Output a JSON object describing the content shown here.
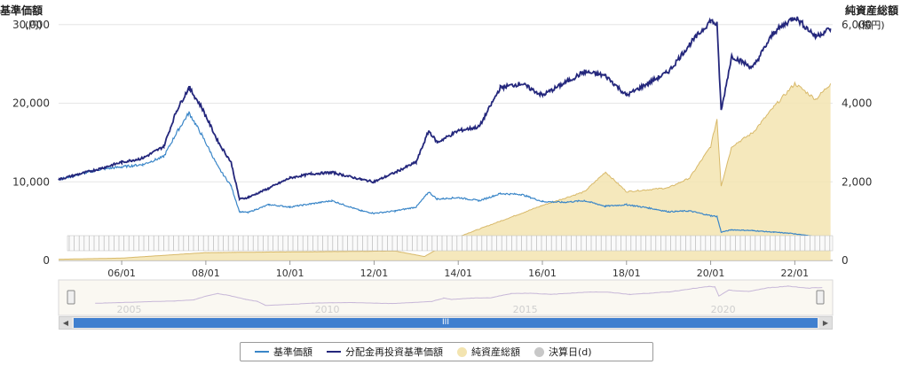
{
  "axes": {
    "left_title": "基準価額",
    "left_unit": "(円)",
    "right_title": "純資産総額",
    "right_unit": "(億円)"
  },
  "legend": {
    "items": [
      {
        "label": "基準価額",
        "color": "#3a86c8",
        "kind": "line"
      },
      {
        "label": "分配金再投資基準価額",
        "color": "#24277c",
        "kind": "line"
      },
      {
        "label": "純資産総額",
        "color": "#f3e4b0",
        "kind": "dot"
      },
      {
        "label": "決算日(d)",
        "color": "#c8c8c8",
        "kind": "dot"
      }
    ]
  },
  "navigator": {
    "years": [
      "2005",
      "2010",
      "2015",
      "2020"
    ],
    "scroll_label": "III"
  },
  "chart_data": {
    "type": "line",
    "x_axis": {
      "label": "",
      "ticks": [
        "06/01",
        "08/01",
        "10/01",
        "12/01",
        "14/01",
        "16/01",
        "18/01",
        "20/01",
        "22/01"
      ],
      "range": [
        "2004/06",
        "2022/12"
      ]
    },
    "y_axis_left": {
      "ticks": [
        "0",
        "10,000",
        "20,000",
        "30,000"
      ],
      "ylim": [
        0,
        32000
      ]
    },
    "y_axis_right": {
      "ticks": [
        "0",
        "2,000",
        "4,000",
        "6,000"
      ],
      "ylim": [
        0,
        6400
      ]
    },
    "grid": true,
    "series": [
      {
        "name": "基準価額",
        "axis": "left",
        "color": "#3a86c8",
        "x": [
          2004.5,
          2005.5,
          2006.0,
          2006.5,
          2007.0,
          2007.3,
          2007.6,
          2007.9,
          2008.3,
          2008.6,
          2008.8,
          2009.0,
          2009.5,
          2010.0,
          2010.5,
          2011.0,
          2011.7,
          2012.0,
          2012.5,
          2013.0,
          2013.3,
          2013.5,
          2014.0,
          2014.5,
          2015.0,
          2015.5,
          2016.0,
          2016.5,
          2017.0,
          2017.5,
          2018.0,
          2018.5,
          2019.0,
          2019.5,
          2020.0,
          2020.15,
          2020.25,
          2020.5,
          2021.0,
          2021.5,
          2022.0,
          2022.5,
          2022.85
        ],
        "values": [
          10300,
          11600,
          11900,
          12200,
          13200,
          16200,
          18800,
          16000,
          11800,
          9500,
          6200,
          6100,
          7100,
          6800,
          7200,
          7600,
          6300,
          6000,
          6300,
          6800,
          8700,
          7800,
          8000,
          7600,
          8500,
          8400,
          7500,
          7400,
          7600,
          6900,
          7100,
          6700,
          6200,
          6300,
          5700,
          5600,
          3600,
          3900,
          3800,
          3600,
          3400,
          3000,
          2800
        ]
      },
      {
        "name": "分配金再投資基準価額",
        "axis": "left",
        "color": "#24277c",
        "x": [
          2004.5,
          2005.5,
          2006.0,
          2006.5,
          2007.0,
          2007.3,
          2007.6,
          2007.9,
          2008.3,
          2008.6,
          2008.8,
          2009.0,
          2009.5,
          2010.0,
          2010.5,
          2011.0,
          2011.7,
          2012.0,
          2012.5,
          2013.0,
          2013.3,
          2013.5,
          2014.0,
          2014.5,
          2015.0,
          2015.5,
          2016.0,
          2016.5,
          2017.0,
          2017.5,
          2018.0,
          2018.5,
          2019.0,
          2019.5,
          2020.0,
          2020.15,
          2020.25,
          2020.5,
          2021.0,
          2021.5,
          2022.0,
          2022.5,
          2022.85
        ],
        "values": [
          10300,
          11700,
          12500,
          13000,
          14500,
          19000,
          22000,
          19500,
          15000,
          12500,
          7800,
          8000,
          9200,
          10500,
          11000,
          11200,
          10300,
          10000,
          11200,
          12500,
          16500,
          15000,
          16500,
          17000,
          22000,
          22500,
          21000,
          22500,
          24000,
          23500,
          21000,
          22500,
          24000,
          27500,
          30500,
          30000,
          19000,
          26000,
          24500,
          29000,
          31000,
          28500,
          29500
        ]
      },
      {
        "name": "純資産総額",
        "axis": "right",
        "kind": "area",
        "color": "#f3e4b0",
        "x": [
          2004.5,
          2006.0,
          2008.0,
          2012.5,
          2013.2,
          2014.0,
          2015.0,
          2016.0,
          2017.0,
          2017.5,
          2018.0,
          2018.5,
          2019.0,
          2019.5,
          2020.0,
          2020.15,
          2020.25,
          2020.5,
          2021.0,
          2021.5,
          2022.0,
          2022.5,
          2022.85
        ],
        "values": [
          30,
          60,
          200,
          240,
          100,
          600,
          1000,
          1400,
          1750,
          2250,
          1750,
          1800,
          1850,
          2100,
          2900,
          3600,
          1900,
          2900,
          3250,
          3900,
          4500,
          4100,
          4500
        ]
      }
    ]
  }
}
